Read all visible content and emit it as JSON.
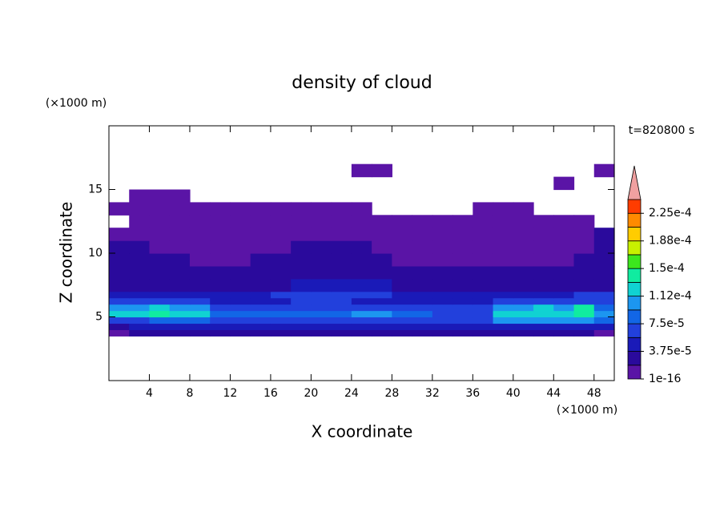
{
  "chart_data": {
    "type": "contour",
    "title": "density of cloud",
    "x_label": "X coordinate",
    "y_label": "Z coordinate",
    "x_unit": "(×1000 m)",
    "y_unit": "(×1000 m)",
    "annotation": "t=820800 s",
    "xlim": [
      0,
      50
    ],
    "ylim": [
      0,
      20
    ],
    "xticks": [
      4,
      8,
      12,
      16,
      20,
      24,
      28,
      32,
      36,
      40,
      44,
      48
    ],
    "yticks": [
      5,
      10,
      15
    ],
    "x_edges": [
      0,
      2,
      4,
      6,
      8,
      10,
      12,
      14,
      16,
      18,
      20,
      22,
      24,
      26,
      28,
      30,
      32,
      34,
      36,
      38,
      40,
      42,
      44,
      46,
      48,
      50
    ],
    "y_edges": [
      3.5,
      4,
      4.5,
      5,
      5.5,
      6,
      6.5,
      7,
      8,
      9,
      10,
      11,
      12,
      13,
      14,
      15,
      16,
      17
    ],
    "z": [
      [
        5e-06,
        2e-05,
        2e-05,
        2e-05,
        2e-05,
        2e-05,
        2e-05,
        2e-05,
        2e-05,
        2e-05,
        2e-05,
        2e-05,
        2e-05,
        2e-05,
        2e-05,
        2e-05,
        2e-05,
        2e-05,
        2e-05,
        2e-05,
        2e-05,
        2e-05,
        2e-05,
        2e-05,
        5e-06
      ],
      [
        2e-05,
        4e-05,
        4e-05,
        4e-05,
        4e-05,
        4e-05,
        4e-05,
        4e-05,
        4e-05,
        4e-05,
        4e-05,
        4e-05,
        4e-05,
        4e-05,
        4e-05,
        4e-05,
        4e-05,
        4e-05,
        4e-05,
        4e-05,
        4e-05,
        4e-05,
        4e-05,
        4e-05,
        4e-05
      ],
      [
        6e-05,
        6e-05,
        8e-05,
        8e-05,
        8e-05,
        6e-05,
        6e-05,
        6e-05,
        6e-05,
        6e-05,
        6e-05,
        6e-05,
        6e-05,
        6e-05,
        6e-05,
        6e-05,
        6e-05,
        6e-05,
        6e-05,
        0.0001,
        0.0001,
        0.0001,
        0.0001,
        0.0001,
        8e-05
      ],
      [
        0.00012,
        0.00012,
        0.00014,
        0.00012,
        0.00012,
        8e-05,
        8e-05,
        8e-05,
        8e-05,
        8e-05,
        8e-05,
        8e-05,
        0.0001,
        0.0001,
        8e-05,
        8e-05,
        6e-05,
        6e-05,
        6e-05,
        0.00012,
        0.00012,
        0.00012,
        0.00012,
        0.00014,
        0.0001
      ],
      [
        0.0001,
        0.0001,
        0.00012,
        0.0001,
        0.0001,
        6e-05,
        6e-05,
        6e-05,
        6e-05,
        6e-05,
        6e-05,
        6e-05,
        6e-05,
        6e-05,
        6e-05,
        6e-05,
        6e-05,
        6e-05,
        6e-05,
        0.0001,
        0.0001,
        0.00012,
        0.0001,
        0.00014,
        8e-05
      ],
      [
        6e-05,
        6e-05,
        6e-05,
        6e-05,
        6e-05,
        4e-05,
        4e-05,
        4e-05,
        4e-05,
        6e-05,
        6e-05,
        6e-05,
        4e-05,
        4e-05,
        4e-05,
        4e-05,
        4e-05,
        4e-05,
        4e-05,
        6e-05,
        6e-05,
        6e-05,
        6e-05,
        6e-05,
        6e-05
      ],
      [
        4e-05,
        4e-05,
        4e-05,
        4e-05,
        4e-05,
        4e-05,
        4e-05,
        4e-05,
        6e-05,
        6e-05,
        6e-05,
        6e-05,
        6e-05,
        6e-05,
        4e-05,
        4e-05,
        4e-05,
        4e-05,
        4e-05,
        4e-05,
        4e-05,
        4e-05,
        4e-05,
        6e-05,
        6e-05
      ],
      [
        2e-05,
        2e-05,
        2e-05,
        2e-05,
        2e-05,
        2e-05,
        2e-05,
        2e-05,
        2e-05,
        4e-05,
        4e-05,
        4e-05,
        4e-05,
        4e-05,
        2e-05,
        2e-05,
        2e-05,
        2e-05,
        2e-05,
        2e-05,
        2e-05,
        2e-05,
        2e-05,
        2e-05,
        2e-05
      ],
      [
        2e-05,
        2e-05,
        2e-05,
        2e-05,
        2e-05,
        2e-05,
        2e-05,
        2e-05,
        2e-05,
        2e-05,
        2e-05,
        2e-05,
        2e-05,
        2e-05,
        2e-05,
        2e-05,
        2e-05,
        2e-05,
        2e-05,
        2e-05,
        2e-05,
        2e-05,
        2e-05,
        2e-05,
        2e-05
      ],
      [
        2e-05,
        2e-05,
        2e-05,
        2e-05,
        5e-06,
        5e-06,
        5e-06,
        2e-05,
        2e-05,
        2e-05,
        2e-05,
        2e-05,
        2e-05,
        2e-05,
        5e-06,
        5e-06,
        5e-06,
        5e-06,
        5e-06,
        5e-06,
        5e-06,
        5e-06,
        5e-06,
        2e-05,
        2e-05
      ],
      [
        2e-05,
        2e-05,
        5e-06,
        5e-06,
        5e-06,
        5e-06,
        5e-06,
        5e-06,
        5e-06,
        2e-05,
        2e-05,
        2e-05,
        2e-05,
        5e-06,
        5e-06,
        5e-06,
        5e-06,
        5e-06,
        5e-06,
        5e-06,
        5e-06,
        5e-06,
        5e-06,
        5e-06,
        2e-05
      ],
      [
        5e-06,
        5e-06,
        5e-06,
        5e-06,
        5e-06,
        5e-06,
        5e-06,
        5e-06,
        5e-06,
        5e-06,
        5e-06,
        5e-06,
        5e-06,
        5e-06,
        5e-06,
        5e-06,
        5e-06,
        5e-06,
        5e-06,
        5e-06,
        5e-06,
        5e-06,
        5e-06,
        5e-06,
        2e-05
      ],
      [
        null,
        5e-06,
        5e-06,
        5e-06,
        5e-06,
        5e-06,
        5e-06,
        5e-06,
        5e-06,
        5e-06,
        5e-06,
        5e-06,
        5e-06,
        5e-06,
        5e-06,
        5e-06,
        5e-06,
        5e-06,
        5e-06,
        5e-06,
        5e-06,
        5e-06,
        5e-06,
        5e-06,
        null
      ],
      [
        5e-06,
        5e-06,
        5e-06,
        5e-06,
        5e-06,
        5e-06,
        5e-06,
        5e-06,
        5e-06,
        5e-06,
        5e-06,
        5e-06,
        5e-06,
        null,
        null,
        null,
        null,
        null,
        5e-06,
        5e-06,
        5e-06,
        null,
        null,
        null,
        null
      ],
      [
        null,
        5e-06,
        5e-06,
        5e-06,
        null,
        null,
        null,
        null,
        null,
        null,
        null,
        null,
        null,
        null,
        null,
        null,
        null,
        null,
        null,
        null,
        null,
        null,
        null,
        null,
        null
      ],
      [
        null,
        null,
        null,
        null,
        null,
        null,
        null,
        null,
        null,
        null,
        null,
        null,
        null,
        null,
        null,
        null,
        null,
        null,
        null,
        null,
        null,
        null,
        5e-06,
        null,
        null
      ],
      [
        null,
        null,
        null,
        null,
        null,
        null,
        null,
        null,
        null,
        null,
        null,
        null,
        5e-06,
        5e-06,
        null,
        null,
        null,
        null,
        null,
        null,
        null,
        null,
        null,
        null,
        5e-06
      ]
    ],
    "colorbar": {
      "levels": [
        1e-16,
        1.875e-05,
        3.75e-05,
        5.625e-05,
        7.5e-05,
        9.375e-05,
        0.0001125,
        0.00013125,
        0.00015,
        0.00016875,
        0.0001875,
        0.00020625,
        0.000225,
        0.00024375
      ],
      "colors": [
        "#5a14a6",
        "#2a0a9c",
        "#1a1ab8",
        "#2240dc",
        "#1266e6",
        "#1c96f0",
        "#10d2d2",
        "#10eca0",
        "#3ce61e",
        "#c8f000",
        "#ffcc00",
        "#ff8a00",
        "#ff3c00"
      ],
      "extend_color": "#f0a0a0",
      "ticks": [
        {
          "value": 1e-16,
          "label": "1e-16"
        },
        {
          "value": 3.75e-05,
          "label": "3.75e-5"
        },
        {
          "value": 7.5e-05,
          "label": "7.5e-5"
        },
        {
          "value": 0.0001125,
          "label": "1.12e-4"
        },
        {
          "value": 0.00015,
          "label": "1.5e-4"
        },
        {
          "value": 0.0001875,
          "label": "1.88e-4"
        },
        {
          "value": 0.000225,
          "label": "2.25e-4"
        }
      ]
    }
  }
}
